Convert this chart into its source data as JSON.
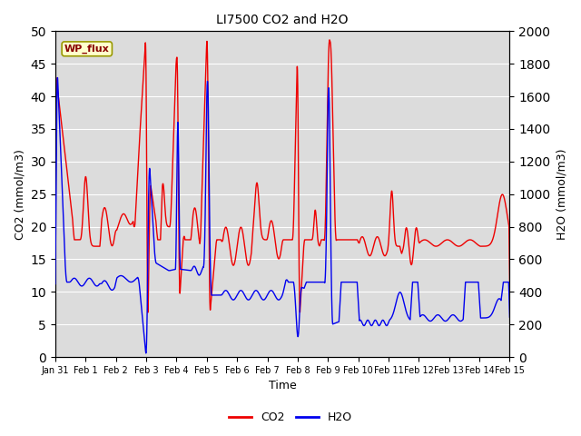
{
  "title": "LI7500 CO2 and H2O",
  "xlabel": "Time",
  "ylabel_left": "CO2 (mmol/m3)",
  "ylabel_right": "H2O (mmol/m3)",
  "ylim_left": [
    0,
    50
  ],
  "ylim_right": [
    0,
    2000
  ],
  "co2_color": "#EE0000",
  "h2o_color": "#0000EE",
  "bg_color": "#DCDCDC",
  "legend_labels": [
    "CO2",
    "H2O"
  ],
  "wp_flux_label": "WP_flux",
  "xtick_labels": [
    "Jan 31",
    "Feb 1",
    "Feb 2",
    "Feb 3",
    "Feb 4",
    "Feb 5",
    "Feb 6",
    "Feb 7",
    "Feb 8",
    "Feb 9",
    "Feb 10",
    "Feb 11",
    "Feb 12",
    "Feb 13",
    "Feb 14",
    "Feb 15"
  ],
  "xtick_positions": [
    0,
    1,
    2,
    3,
    4,
    5,
    6,
    7,
    8,
    9,
    10,
    11,
    12,
    13,
    14,
    15
  ],
  "yticks_left": [
    0,
    5,
    10,
    15,
    20,
    25,
    30,
    35,
    40,
    45,
    50
  ],
  "yticks_right": [
    0,
    200,
    400,
    600,
    800,
    1000,
    1200,
    1400,
    1600,
    1800,
    2000
  ]
}
